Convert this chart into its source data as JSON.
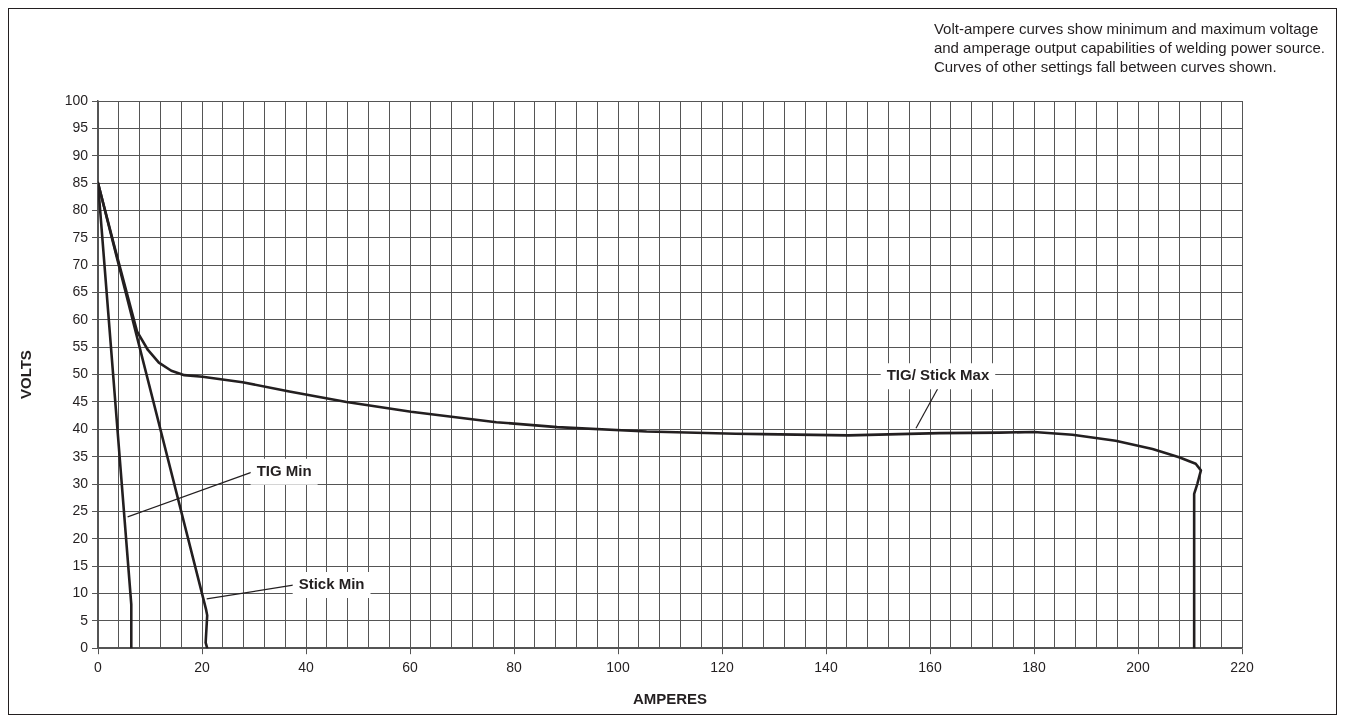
{
  "chart_data": {
    "type": "line",
    "xlabel": "AMPERES",
    "ylabel": "VOLTS",
    "xlim": [
      0,
      220
    ],
    "xticks": [
      0,
      {
        "value": 4,
        "label": null
      },
      {
        "value": 8,
        "label": null
      },
      {
        "value": 12,
        "label": null
      },
      {
        "value": 16,
        "label": null
      },
      20,
      {
        "value": 24,
        "label": null
      },
      {
        "value": 28,
        "label": null
      },
      {
        "value": 32,
        "label": null
      },
      {
        "value": 36,
        "label": null
      },
      40,
      {
        "value": 44,
        "label": null
      },
      {
        "value": 48,
        "label": null
      },
      {
        "value": 52,
        "label": null
      },
      {
        "value": 56,
        "label": null
      },
      60,
      {
        "value": 64,
        "label": null
      },
      {
        "value": 68,
        "label": null
      },
      {
        "value": 72,
        "label": null
      },
      {
        "value": 76,
        "label": null
      },
      80,
      {
        "value": 84,
        "label": null
      },
      {
        "value": 88,
        "label": null
      },
      {
        "value": 92,
        "label": null
      },
      {
        "value": 96,
        "label": null
      },
      100,
      {
        "value": 104,
        "label": null
      },
      {
        "value": 108,
        "label": null
      },
      {
        "value": 112,
        "label": null
      },
      {
        "value": 116,
        "label": null
      },
      120,
      {
        "value": 124,
        "label": null
      },
      {
        "value": 128,
        "label": null
      },
      {
        "value": 132,
        "label": null
      },
      {
        "value": 136,
        "label": null
      },
      140,
      {
        "value": 144,
        "label": null
      },
      {
        "value": 148,
        "label": null
      },
      {
        "value": 152,
        "label": null
      },
      {
        "value": 156,
        "label": null
      },
      160,
      {
        "value": 164,
        "label": null
      },
      {
        "value": 168,
        "label": null
      },
      {
        "value": 172,
        "label": null
      },
      {
        "value": 176,
        "label": null
      },
      180,
      {
        "value": 184,
        "label": null
      },
      {
        "value": 188,
        "label": null
      },
      {
        "value": 192,
        "label": null
      },
      {
        "value": 196,
        "label": null
      },
      200,
      {
        "value": 204,
        "label": null
      },
      {
        "value": 208,
        "label": null
      },
      {
        "value": 212,
        "label": null
      },
      {
        "value": 216,
        "label": null
      },
      220
    ],
    "ylim": [
      0,
      100
    ],
    "yticks": [
      0,
      5,
      10,
      15,
      20,
      25,
      30,
      35,
      40,
      45,
      50,
      55,
      60,
      65,
      70,
      75,
      80,
      85,
      90,
      95,
      100
    ],
    "grid": true,
    "legend": false,
    "marker": "none",
    "line_style": "solid",
    "series": [
      {
        "color": "#231f20",
        "x": [
          0,
          6.4,
          6.4
        ],
        "values": [
          85,
          8,
          0
        ]
      },
      {
        "color": "#231f20",
        "x": [
          0,
          20.8,
          21,
          20.7,
          21
        ],
        "values": [
          85,
          7,
          6,
          1,
          0
        ]
      },
      {
        "color": "#231f20",
        "x": [
          0,
          3,
          7.5,
          9.6,
          11.7,
          14.1,
          16.6,
          20.1,
          27.8,
          36.8,
          47.8,
          60.2,
          76.6,
          88.3,
          105.5,
          122.6,
          144.3,
          161.8,
          173.3,
          180,
          187.4,
          195.7,
          202.8,
          207.9,
          211.1,
          212.1,
          211.4,
          210.8,
          210.8
        ],
        "values": [
          85,
          74,
          57.9,
          54.5,
          52.2,
          50.7,
          49.9,
          49.6,
          48.6,
          46.9,
          45,
          43.2,
          41.3,
          40.4,
          39.6,
          39.2,
          38.9,
          39.3,
          39.4,
          39.5,
          39,
          37.9,
          36.4,
          34.9,
          33.7,
          32.5,
          30,
          28.2,
          0
        ]
      }
    ],
    "annotations": [
      "Volt-ampere curves show minimum and maximum voltage\nand amperage output capabilities of welding power source.\nCurves of other settings fall between curves shown.",
      {
        "text": "TIG Min",
        "x": 5.7,
        "y": 24
      },
      {
        "text": "Stick Min",
        "x": 20.9,
        "y": 9
      },
      {
        "text": "TIG/ Stick Max",
        "x": 157.3,
        "y": 40.2
      }
    ]
  }
}
